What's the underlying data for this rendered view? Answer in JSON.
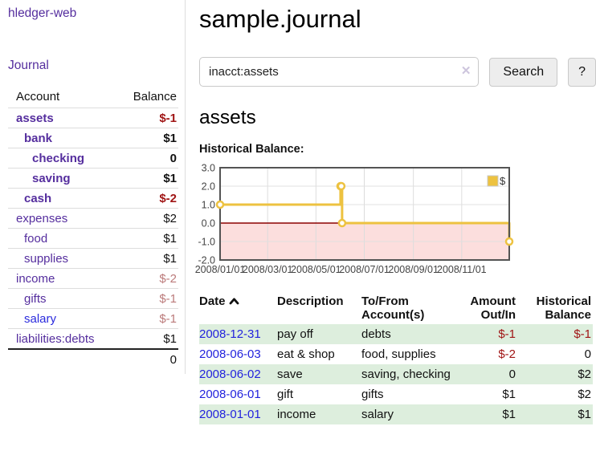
{
  "sidebar": {
    "brand": "hledger-web",
    "nav": [
      {
        "label": "Journal"
      }
    ],
    "accounts_table": {
      "headers": {
        "account": "Account",
        "balance": "Balance"
      },
      "rows": [
        {
          "account": "assets",
          "balance": "$-1",
          "indent": 1,
          "bold": true,
          "link_color": "purple"
        },
        {
          "account": "bank",
          "balance": "$1",
          "indent": 2,
          "bold": true,
          "link_color": "purple"
        },
        {
          "account": "checking",
          "balance": "0",
          "indent": 3,
          "bold": true,
          "link_color": "purple"
        },
        {
          "account": "saving",
          "balance": "$1",
          "indent": 3,
          "bold": true,
          "link_color": "purple"
        },
        {
          "account": "cash",
          "balance": "$-2",
          "indent": 2,
          "bold": true,
          "link_color": "purple"
        },
        {
          "account": "expenses",
          "balance": "$2",
          "indent": 1,
          "bold": false,
          "link_color": "purple"
        },
        {
          "account": "food",
          "balance": "$1",
          "indent": 2,
          "bold": false,
          "link_color": "purple"
        },
        {
          "account": "supplies",
          "balance": "$1",
          "indent": 2,
          "bold": false,
          "link_color": "purple"
        },
        {
          "account": "income",
          "balance": "$-2",
          "indent": 1,
          "bold": false,
          "link_color": "purple"
        },
        {
          "account": "gifts",
          "balance": "$-1",
          "indent": 2,
          "bold": false,
          "link_color": "purple"
        },
        {
          "account": "salary",
          "balance": "$-1",
          "indent": 2,
          "bold": false,
          "link_color": "blue"
        },
        {
          "account": "liabilities:debts",
          "balance": "$1",
          "indent": 1,
          "bold": false,
          "link_color": "purple"
        }
      ],
      "total": "0"
    }
  },
  "header": {
    "title": "sample.journal"
  },
  "search": {
    "value": "inacct:assets",
    "clear_icon": "✕",
    "search_button": "Search",
    "help_button": "?"
  },
  "account_page": {
    "title": "assets",
    "chart_label": "Historical Balance:"
  },
  "chart_data": {
    "type": "line",
    "step": true,
    "title": "Historical Balance",
    "series": [
      {
        "name": "$",
        "color": "#edc240",
        "points": [
          {
            "date": "2008-01-01",
            "value": 1
          },
          {
            "date": "2008-06-01",
            "value": 2
          },
          {
            "date": "2008-06-02",
            "value": 2
          },
          {
            "date": "2008-06-03",
            "value": 0
          },
          {
            "date": "2008-12-31",
            "value": -1
          }
        ]
      }
    ],
    "x_range": [
      "2008-01-01",
      "2008-12-31"
    ],
    "ylim": [
      -2.0,
      3.0
    ],
    "y_ticks": [
      3.0,
      2.0,
      1.0,
      0.0,
      -1.0,
      -2.0
    ],
    "x_ticks": [
      "2008/01/01",
      "2008/03/01",
      "2008/05/01",
      "2008/07/01",
      "2008/09/01",
      "2008/11/01"
    ],
    "legend_position": "top-right",
    "grid": true,
    "negative_region_fill": "#fcdedd",
    "zero_line_color": "#8b0000",
    "border_color": "#545454",
    "gridline_color": "#dcdcdc"
  },
  "register_table": {
    "headers": {
      "date": "Date",
      "sort_icon": "chevron-up",
      "description": "Description",
      "accounts": "To/From Account(s)",
      "amount": "Amount Out/In",
      "balance": "Historical Balance"
    },
    "rows": [
      {
        "date": "2008-12-31",
        "description": "pay off",
        "accounts": "debts",
        "amount": "$-1",
        "balance": "$-1"
      },
      {
        "date": "2008-06-03",
        "description": "eat & shop",
        "accounts": "food, supplies",
        "amount": "$-2",
        "balance": "0"
      },
      {
        "date": "2008-06-02",
        "description": "save",
        "accounts": "saving, checking",
        "amount": "0",
        "balance": "$2"
      },
      {
        "date": "2008-06-01",
        "description": "gift",
        "accounts": "gifts",
        "amount": "$1",
        "balance": "$2"
      },
      {
        "date": "2008-01-01",
        "description": "income",
        "accounts": "salary",
        "amount": "$1",
        "balance": "$1"
      }
    ]
  },
  "colors": {
    "link_purple": "#552e9e",
    "link_blue": "#2323dd",
    "negative_strong": "#a01515",
    "negative_pale": "#bb7a7a",
    "row_stripe_green": "#ddeedd",
    "chart_series_gold": "#edc240",
    "chart_negative_pink": "#fcdedd",
    "chart_zero_line": "#8b0000"
  }
}
